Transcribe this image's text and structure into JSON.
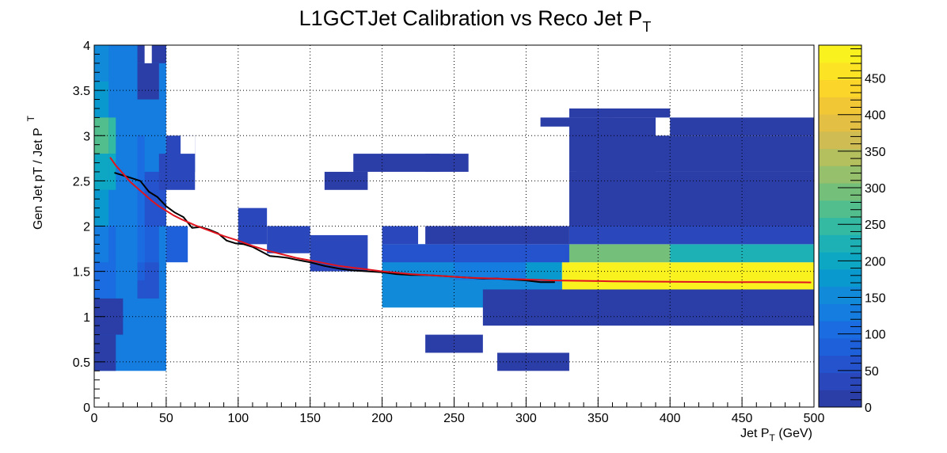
{
  "chart_data": {
    "type": "heatmap",
    "title": "L1GCTJet Calibration vs Reco Jet P",
    "title_sub": "T",
    "xlabel": "Jet P",
    "xlabel_sub": "T",
    "xlabel_unit": " (GeV)",
    "ylabel": "Gen Jet pT / Jet P",
    "ylabel_sub": "T",
    "xlim": [
      0,
      500
    ],
    "ylim": [
      0,
      4
    ],
    "x_ticks": [
      "0",
      "50",
      "100",
      "150",
      "200",
      "250",
      "300",
      "350",
      "400",
      "450",
      "500"
    ],
    "y_ticks": [
      "0",
      "0.5",
      "1",
      "1.5",
      "2",
      "2.5",
      "3",
      "3.5",
      "4"
    ],
    "z_ticks": [
      "0",
      "50",
      "100",
      "150",
      "200",
      "250",
      "300",
      "350",
      "400",
      "450"
    ],
    "zlim": [
      0,
      495
    ],
    "grid": true,
    "palette": [
      "#2b3ea8",
      "#2a48bb",
      "#2453cd",
      "#1d60da",
      "#1a6ce0",
      "#157ce0",
      "#118bd9",
      "#0a99cf",
      "#0ea7c3",
      "#1db1b5",
      "#34b9a2",
      "#52be8d",
      "#74c07b",
      "#96c06b",
      "#b4bf5e",
      "#cfbc52",
      "#e3bf43",
      "#f2c735",
      "#fbd52a",
      "#fce425",
      "#faf21f"
    ],
    "cells": [
      [
        0,
        0.4,
        50,
        3.6,
        140
      ],
      [
        0,
        3.6,
        10,
        0.4,
        160
      ],
      [
        0,
        3.2,
        10,
        0.4,
        175
      ],
      [
        0,
        2.8,
        10,
        0.4,
        260
      ],
      [
        0,
        2.4,
        10,
        0.4,
        200
      ],
      [
        0,
        2.0,
        10,
        0.4,
        170
      ],
      [
        0,
        1.6,
        10,
        0.4,
        130
      ],
      [
        0,
        1.2,
        10,
        0.4,
        95
      ],
      [
        10,
        2.8,
        5,
        0.4,
        240
      ],
      [
        10,
        2.4,
        5,
        0.4,
        210
      ],
      [
        10,
        1.2,
        5,
        0.8,
        110
      ],
      [
        0,
        0.8,
        20,
        0.4,
        5
      ],
      [
        0,
        0.4,
        15,
        0.4,
        3
      ],
      [
        30,
        2.0,
        5,
        1.0,
        105
      ],
      [
        30,
        1.6,
        5,
        0.4,
        100
      ],
      [
        30,
        1.4,
        5,
        0.2,
        90
      ],
      [
        30,
        1.2,
        5,
        0.2,
        70
      ],
      [
        35,
        1.6,
        10,
        0.4,
        85
      ],
      [
        35,
        1.2,
        10,
        0.4,
        60
      ],
      [
        35,
        2.0,
        15,
        0.6,
        70
      ],
      [
        50,
        1.6,
        15,
        0.4,
        75
      ],
      [
        45,
        2.4,
        25,
        0.4,
        40
      ],
      [
        50,
        2.6,
        20,
        0.4,
        35
      ],
      [
        30,
        3.4,
        15,
        0.4,
        5
      ],
      [
        30,
        3.8,
        20,
        0.2,
        3
      ],
      [
        100,
        1.8,
        20,
        0.4,
        25
      ],
      [
        120,
        1.7,
        30,
        0.3,
        30
      ],
      [
        150,
        1.5,
        40,
        0.4,
        45
      ],
      [
        200,
        1.3,
        50,
        0.5,
        150
      ],
      [
        250,
        1.3,
        50,
        0.4,
        140
      ],
      [
        300,
        1.3,
        25,
        0.4,
        180
      ],
      [
        325,
        1.2,
        75,
        0.4,
        495
      ],
      [
        400,
        1.2,
        100,
        0.4,
        495
      ],
      [
        325,
        1.6,
        75,
        0.2,
        290
      ],
      [
        400,
        1.6,
        100,
        0.2,
        220
      ],
      [
        325,
        1.0,
        175,
        0.2,
        165
      ],
      [
        200,
        1.1,
        125,
        0.3,
        160
      ],
      [
        200,
        1.6,
        130,
        0.2,
        70
      ],
      [
        330,
        1.8,
        170,
        0.2,
        30
      ],
      [
        200,
        1.8,
        25,
        0.2,
        40
      ],
      [
        230,
        1.8,
        100,
        0.2,
        8
      ],
      [
        270,
        0.9,
        230,
        0.4,
        2
      ],
      [
        230,
        0.6,
        40,
        0.2,
        2
      ],
      [
        280,
        0.4,
        50,
        0.2,
        3
      ],
      [
        335,
        2.6,
        165,
        0.4,
        5
      ],
      [
        330,
        2.0,
        170,
        0.6,
        10
      ],
      [
        330,
        2.6,
        60,
        0.6,
        3
      ],
      [
        330,
        3.2,
        70,
        0.1,
        2
      ],
      [
        400,
        3.0,
        100,
        0.2,
        3
      ],
      [
        310,
        3.1,
        50,
        0.1,
        2
      ],
      [
        230,
        2.6,
        30,
        0.2,
        2
      ],
      [
        180,
        2.6,
        60,
        0.2,
        3
      ],
      [
        160,
        2.4,
        30,
        0.2,
        2
      ]
    ],
    "empty_cells": [
      [
        50,
        0,
        10,
        0.4
      ],
      [
        75,
        0,
        10,
        0.4
      ],
      [
        90,
        0,
        10,
        0.4
      ],
      [
        110,
        0.2,
        5,
        0.2
      ],
      [
        140,
        0,
        10,
        0.2
      ],
      [
        35,
        3.8,
        5,
        0.2
      ],
      [
        55,
        3.6,
        5,
        0.4
      ],
      [
        70,
        3.6,
        10,
        0.4
      ],
      [
        65,
        3.2,
        5,
        0.2
      ],
      [
        90,
        3.4,
        10,
        0.2
      ],
      [
        80,
        3.0,
        5,
        0.2
      ],
      [
        60,
        2.8,
        10,
        0.2
      ],
      [
        95,
        2.8,
        5,
        0.2
      ],
      [
        85,
        2.6,
        5,
        0.2
      ],
      [
        170,
        2.8,
        5,
        0.2
      ],
      [
        130,
        3.0,
        10,
        0.2
      ],
      [
        155,
        0.6,
        10,
        0.2
      ],
      [
        170,
        0.2,
        5,
        0.2
      ],
      [
        100,
        0.6,
        5,
        0.4
      ],
      [
        70,
        0.6,
        5,
        0.2
      ]
    ],
    "series": [
      {
        "name": "",
        "color": "#000000",
        "x": [
          14,
          20,
          26,
          32,
          38,
          44,
          50,
          56,
          62,
          68,
          74,
          80,
          86,
          92,
          98,
          104,
          110,
          116,
          122,
          128,
          134,
          140,
          150,
          160,
          170,
          180,
          190,
          200,
          210,
          220,
          230,
          240,
          250,
          260,
          270,
          280,
          290,
          300,
          310,
          320
        ],
        "y": [
          2.59,
          2.56,
          2.53,
          2.5,
          2.38,
          2.32,
          2.22,
          2.15,
          2.1,
          1.98,
          1.99,
          1.96,
          1.92,
          1.84,
          1.81,
          1.8,
          1.77,
          1.72,
          1.67,
          1.66,
          1.65,
          1.63,
          1.6,
          1.56,
          1.53,
          1.51,
          1.5,
          1.49,
          1.47,
          1.46,
          1.46,
          1.45,
          1.44,
          1.43,
          1.42,
          1.42,
          1.41,
          1.4,
          1.38,
          1.38
        ]
      },
      {
        "name": "",
        "color": "#e0141e",
        "x": [
          11,
          15,
          20,
          25,
          30,
          35,
          40,
          45,
          50,
          55,
          60,
          70,
          80,
          90,
          100,
          110,
          120,
          130,
          140,
          150,
          160,
          170,
          180,
          190,
          200,
          220,
          240,
          260,
          280,
          300,
          320,
          340,
          360,
          380,
          400,
          420,
          440,
          460,
          480,
          498
        ],
        "y": [
          2.76,
          2.67,
          2.58,
          2.49,
          2.42,
          2.35,
          2.28,
          2.22,
          2.17,
          2.12,
          2.08,
          2.01,
          1.95,
          1.89,
          1.84,
          1.78,
          1.73,
          1.69,
          1.65,
          1.62,
          1.59,
          1.56,
          1.54,
          1.52,
          1.5,
          1.47,
          1.45,
          1.43,
          1.42,
          1.41,
          1.4,
          1.395,
          1.39,
          1.387,
          1.385,
          1.383,
          1.381,
          1.38,
          1.379,
          1.378
        ]
      }
    ]
  }
}
